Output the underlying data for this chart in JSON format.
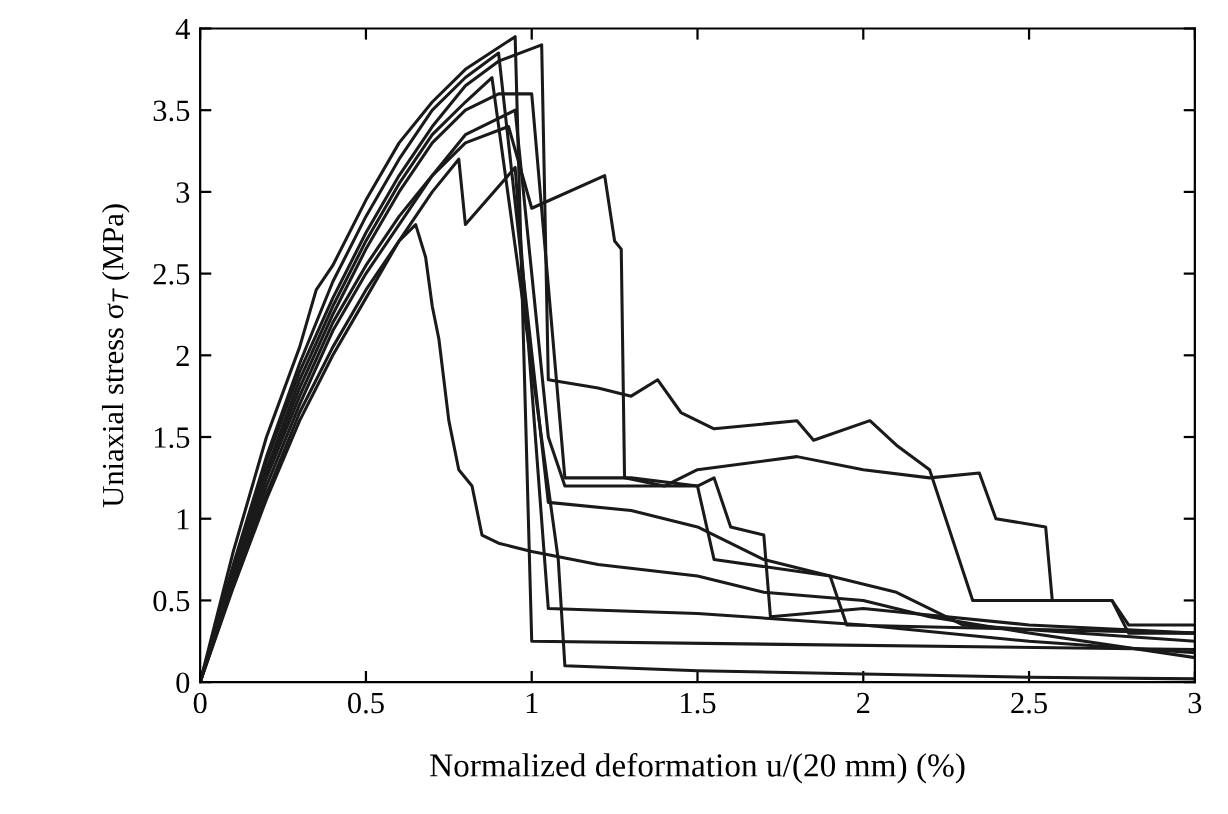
{
  "chart_data": {
    "type": "line",
    "xlabel": "Normalized deformation u/(20 mm) (%)",
    "ylabel": "Uniaxial stress σ$_{T}$ (MPa)",
    "xlim": [
      0,
      3
    ],
    "ylim": [
      0,
      4
    ],
    "xticks": [
      0,
      0.5,
      1,
      1.5,
      2,
      2.5,
      3
    ],
    "yticks": [
      0,
      0.5,
      1,
      1.5,
      2,
      2.5,
      3,
      3.5,
      4
    ],
    "grid": false,
    "marker": "none",
    "line_style": "solid",
    "series": [
      {
        "color": "#1a1a1a",
        "x": [
          0,
          0.1,
          0.2,
          0.3,
          0.4,
          0.5,
          0.6,
          0.65,
          0.68,
          0.7,
          0.72,
          0.75,
          0.78,
          0.82,
          0.85,
          0.9,
          1.0,
          1.2,
          1.5,
          1.7,
          2.0,
          2.2,
          2.5,
          3.0
        ],
        "values": [
          0,
          0.6,
          1.15,
          1.65,
          2.05,
          2.4,
          2.7,
          2.8,
          2.6,
          2.3,
          2.1,
          1.6,
          1.3,
          1.2,
          0.9,
          0.85,
          0.8,
          0.72,
          0.65,
          0.55,
          0.5,
          0.4,
          0.3,
          0.15
        ]
      },
      {
        "color": "#1a1a1a",
        "x": [
          0,
          0.1,
          0.2,
          0.3,
          0.4,
          0.5,
          0.6,
          0.7,
          0.8,
          0.93,
          1.0,
          1.22,
          1.25,
          1.27,
          1.28,
          1.4,
          1.5,
          1.8,
          2.0,
          2.2,
          2.35,
          2.4,
          2.55,
          2.57,
          2.75,
          2.8,
          3.0
        ],
        "values": [
          0,
          0.65,
          1.25,
          1.75,
          2.2,
          2.55,
          2.85,
          3.1,
          3.3,
          3.4,
          2.9,
          3.1,
          2.7,
          2.65,
          1.25,
          1.2,
          1.3,
          1.38,
          1.3,
          1.25,
          1.28,
          1.0,
          0.95,
          0.5,
          0.5,
          0.35,
          0.35
        ]
      },
      {
        "color": "#1a1a1a",
        "x": [
          0,
          0.1,
          0.2,
          0.3,
          0.4,
          0.5,
          0.6,
          0.7,
          0.8,
          0.9,
          1.03,
          1.05,
          1.2,
          1.3,
          1.38,
          1.45,
          1.55,
          1.8,
          1.85,
          2.02,
          2.1,
          2.2,
          2.33,
          2.75,
          2.8,
          3.0
        ],
        "values": [
          0,
          0.7,
          1.35,
          1.9,
          2.35,
          2.75,
          3.1,
          3.4,
          3.65,
          3.8,
          3.9,
          1.85,
          1.8,
          1.75,
          1.85,
          1.65,
          1.55,
          1.6,
          1.48,
          1.6,
          1.45,
          1.3,
          0.5,
          0.5,
          0.3,
          0.3
        ]
      },
      {
        "color": "#1a1a1a",
        "x": [
          0,
          0.1,
          0.15,
          0.2,
          0.3,
          0.35,
          0.4,
          0.5,
          0.6,
          0.7,
          0.8,
          0.95,
          1.0,
          3.0
        ],
        "values": [
          0,
          0.8,
          1.15,
          1.5,
          2.05,
          2.4,
          2.55,
          2.95,
          3.3,
          3.55,
          3.75,
          3.95,
          0.25,
          0.2
        ]
      },
      {
        "color": "#1a1a1a",
        "x": [
          0,
          0.1,
          0.2,
          0.3,
          0.4,
          0.5,
          0.6,
          0.7,
          0.8,
          0.9,
          1.05,
          1.3,
          1.5,
          1.7,
          1.9,
          2.1,
          2.3,
          3.0
        ],
        "values": [
          0,
          0.72,
          1.38,
          1.95,
          2.45,
          2.85,
          3.2,
          3.5,
          3.7,
          3.85,
          1.1,
          1.05,
          0.95,
          0.75,
          0.65,
          0.55,
          0.35,
          0.25
        ]
      },
      {
        "color": "#1a1a1a",
        "x": [
          0,
          0.1,
          0.2,
          0.3,
          0.4,
          0.5,
          0.6,
          0.7,
          0.8,
          0.88,
          1.08,
          1.1,
          1.5,
          2.0,
          2.5,
          3.0
        ],
        "values": [
          0,
          0.68,
          1.3,
          1.85,
          2.3,
          2.7,
          3.05,
          3.35,
          3.55,
          3.7,
          0.75,
          0.1,
          0.07,
          0.05,
          0.03,
          0.02
        ]
      },
      {
        "color": "#1a1a1a",
        "x": [
          0,
          0.1,
          0.2,
          0.3,
          0.4,
          0.5,
          0.6,
          0.7,
          0.8,
          0.95,
          1.05,
          1.1,
          1.5,
          1.55,
          1.6,
          1.7,
          1.72,
          2.0,
          2.5,
          3.0
        ],
        "values": [
          0,
          0.62,
          1.2,
          1.7,
          2.15,
          2.5,
          2.8,
          3.1,
          3.35,
          3.5,
          1.5,
          1.2,
          1.2,
          1.25,
          0.95,
          0.9,
          0.4,
          0.45,
          0.35,
          0.3
        ]
      },
      {
        "color": "#1a1a1a",
        "x": [
          0,
          0.1,
          0.2,
          0.3,
          0.4,
          0.5,
          0.6,
          0.7,
          0.78,
          0.8,
          0.95,
          1.05,
          1.5,
          2.0,
          2.5,
          3.0
        ],
        "values": [
          0,
          0.58,
          1.12,
          1.6,
          2.0,
          2.35,
          2.7,
          3.0,
          3.2,
          2.8,
          3.15,
          0.45,
          0.42,
          0.35,
          0.25,
          0.18
        ]
      },
      {
        "color": "#1a1a1a",
        "x": [
          0,
          0.1,
          0.2,
          0.3,
          0.4,
          0.5,
          0.6,
          0.7,
          0.8,
          0.9,
          1.0,
          1.1,
          1.3,
          1.5,
          1.55,
          1.9,
          1.95,
          3.0
        ],
        "values": [
          0,
          0.66,
          1.28,
          1.8,
          2.25,
          2.65,
          3.0,
          3.3,
          3.5,
          3.6,
          3.6,
          1.25,
          1.25,
          1.2,
          0.75,
          0.65,
          0.35,
          0.3
        ]
      }
    ]
  }
}
